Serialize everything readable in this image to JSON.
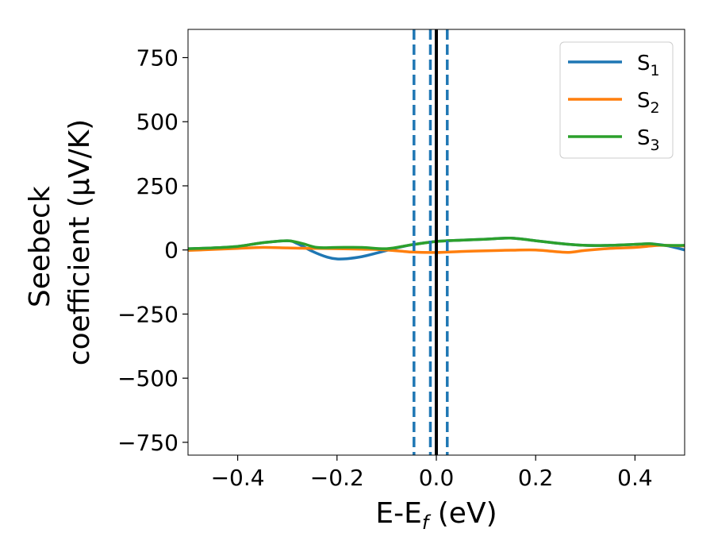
{
  "chart_data": {
    "type": "line",
    "xlabel": {
      "base": "E-E",
      "sub": "f",
      "rest": " (eV)"
    },
    "ylabel_line1": "Seebeck",
    "ylabel_line2": "coefficient  (μV/K)",
    "xlim": [
      -0.5,
      0.5
    ],
    "ylim": [
      -800,
      860
    ],
    "xticks": [
      -0.4,
      -0.2,
      0.0,
      0.2,
      0.4
    ],
    "xtick_labels": [
      "−0.4",
      "−0.2",
      "0.0",
      "0.2",
      "0.4"
    ],
    "yticks": [
      750,
      500,
      250,
      0,
      -250,
      -500,
      -750
    ],
    "ytick_labels": [
      "750",
      "500",
      "250",
      "0",
      "−250",
      "−500",
      "−750"
    ],
    "grid": false,
    "legend_position": "top-right",
    "colors": {
      "s1": "#1f77b4",
      "s2": "#ff7f0e",
      "s3": "#2ca02c",
      "fermi": "#000000",
      "dashed": "#1f77b4"
    },
    "series": [
      {
        "name": "S",
        "sub": "1",
        "color": "#1f77b4",
        "x": [
          -0.5,
          -0.45,
          -0.4,
          -0.35,
          -0.3,
          -0.28,
          -0.25,
          -0.22,
          -0.2,
          -0.18,
          -0.15,
          -0.12,
          -0.1,
          -0.08,
          -0.05,
          0.0,
          0.05,
          0.1,
          0.15,
          0.2,
          0.25,
          0.3,
          0.35,
          0.4,
          0.43,
          0.46,
          0.48,
          0.5
        ],
        "y": [
          5,
          8,
          14,
          28,
          36,
          25,
          -5,
          -28,
          -35,
          -34,
          -26,
          -12,
          -2,
          8,
          20,
          33,
          38,
          42,
          46,
          36,
          25,
          18,
          18,
          22,
          24,
          18,
          10,
          0
        ]
      },
      {
        "name": "S",
        "sub": "2",
        "color": "#ff7f0e",
        "x": [
          -0.5,
          -0.45,
          -0.4,
          -0.35,
          -0.3,
          -0.25,
          -0.2,
          -0.15,
          -0.1,
          -0.05,
          0.0,
          0.05,
          0.1,
          0.15,
          0.2,
          0.25,
          0.27,
          0.3,
          0.35,
          0.4,
          0.43,
          0.45,
          0.48,
          0.5
        ],
        "y": [
          -2,
          2,
          6,
          10,
          8,
          6,
          5,
          3,
          0,
          -8,
          -10,
          -6,
          -3,
          -1,
          0,
          -8,
          -9,
          -2,
          6,
          10,
          15,
          18,
          17,
          16
        ]
      },
      {
        "name": "S",
        "sub": "3",
        "color": "#2ca02c",
        "x": [
          -0.5,
          -0.45,
          -0.4,
          -0.35,
          -0.3,
          -0.27,
          -0.24,
          -0.2,
          -0.15,
          -0.1,
          -0.05,
          0.0,
          0.05,
          0.1,
          0.15,
          0.2,
          0.25,
          0.3,
          0.35,
          0.4,
          0.43,
          0.46,
          0.5
        ],
        "y": [
          5,
          8,
          14,
          28,
          36,
          25,
          10,
          10,
          10,
          5,
          20,
          33,
          38,
          42,
          46,
          36,
          25,
          18,
          18,
          22,
          24,
          18,
          18
        ]
      }
    ],
    "vertical_lines": [
      {
        "x": 0.0,
        "style": "solid",
        "color": "#000000"
      },
      {
        "x": -0.045,
        "style": "dashed",
        "color": "#1f77b4"
      },
      {
        "x": -0.012,
        "style": "dashed",
        "color": "#1f77b4"
      },
      {
        "x": 0.022,
        "style": "dashed",
        "color": "#1f77b4"
      }
    ]
  }
}
